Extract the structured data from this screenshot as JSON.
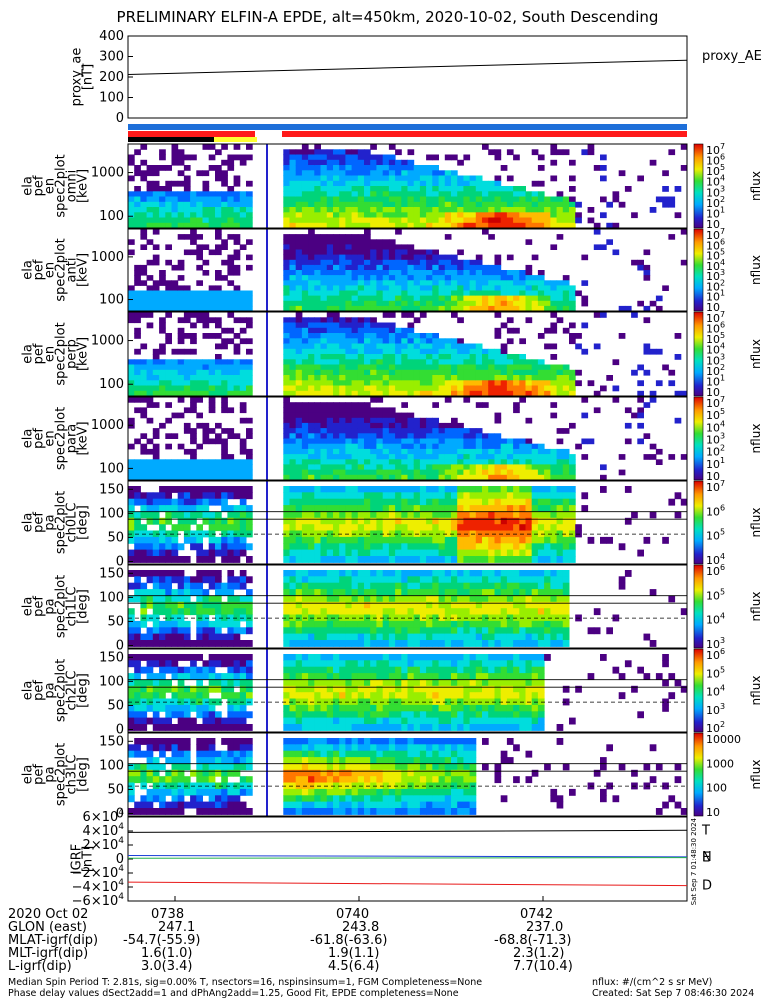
{
  "title": "PRELIMINARY ELFIN-A EPDE, alt=450km, 2020-10-02, South Descending",
  "chart_data": [
    {
      "type": "line",
      "name": "proxy_ae",
      "ylabel": [
        "proxy_ae",
        "[nT]"
      ],
      "legend": "proxy_AE",
      "yticks": [
        "400",
        "300",
        "200",
        "100",
        "0"
      ],
      "ylim": [
        0,
        400
      ],
      "series": [
        {
          "name": "proxy_AE",
          "color": "#000000",
          "y_start": 212,
          "y_end": 282
        }
      ]
    },
    {
      "type": "heatmap",
      "name": "ela_pef_en_spec2plot_omni",
      "ylabel": [
        "ela",
        "pef",
        "en",
        "spec2plot",
        "omni",
        "[keV]"
      ],
      "yticks": [
        "1000",
        "100"
      ],
      "cbar_unit": "nflux",
      "cbar_ticks": [
        "10",
        "10",
        "10",
        "10",
        "10",
        "10",
        "10",
        "10"
      ],
      "cbar_exps": [
        "7",
        "6",
        "5",
        "4",
        "3",
        "2",
        "1",
        ""
      ]
    },
    {
      "type": "heatmap",
      "name": "ela_pef_en_spec2plot_anti",
      "ylabel": [
        "ela",
        "pef",
        "en",
        "spec2plot",
        "anti",
        "[keV]"
      ],
      "yticks": [
        "1000",
        "100"
      ],
      "cbar_unit": "nflux",
      "cbar_ticks": [
        "10",
        "10",
        "10",
        "10",
        "10",
        "10",
        "10",
        "10"
      ],
      "cbar_exps": [
        "7",
        "6",
        "5",
        "4",
        "3",
        "2",
        "1",
        ""
      ]
    },
    {
      "type": "heatmap",
      "name": "ela_pef_en_spec2plot_perp",
      "ylabel": [
        "ela",
        "pef",
        "en",
        "spec2plot",
        "perp",
        "[keV]"
      ],
      "yticks": [
        "1000",
        "100"
      ],
      "cbar_unit": "nflux",
      "cbar_ticks": [
        "10",
        "10",
        "10",
        "10",
        "10",
        "10",
        "10",
        "10"
      ],
      "cbar_exps": [
        "7",
        "6",
        "5",
        "4",
        "3",
        "2",
        "1",
        ""
      ]
    },
    {
      "type": "heatmap",
      "name": "ela_pef_en_spec2plot_para",
      "ylabel": [
        "ela",
        "pef",
        "en",
        "spec2plot",
        "para",
        "[keV]"
      ],
      "yticks": [
        "1000",
        "100"
      ],
      "cbar_unit": "nflux",
      "cbar_ticks": [
        "10",
        "10",
        "10",
        "10",
        "10",
        "10",
        "10"
      ],
      "cbar_exps": [
        "7",
        "5",
        "4",
        "3",
        "2",
        "1",
        ""
      ]
    },
    {
      "type": "heatmap",
      "name": "ela_pef_pa_spec2plot_ch0LC",
      "ylabel": [
        "ela",
        "pef",
        "pa",
        "spec2plot",
        "ch0LC",
        "[deg]"
      ],
      "yticks": [
        "150",
        "100",
        "50",
        "0"
      ],
      "cbar_unit": "nflux",
      "cbar_ticks": [
        "10",
        "10",
        "10",
        "10"
      ],
      "cbar_exps": [
        "7",
        "6",
        "5",
        "4"
      ]
    },
    {
      "type": "heatmap",
      "name": "ela_pef_pa_spec2plot_ch1LC",
      "ylabel": [
        "ela",
        "pef",
        "pa",
        "spec2plot",
        "ch1LC",
        "[deg]"
      ],
      "yticks": [
        "150",
        "100",
        "50",
        "0"
      ],
      "cbar_unit": "nflux",
      "cbar_ticks": [
        "10",
        "10",
        "10",
        "10"
      ],
      "cbar_exps": [
        "6",
        "5",
        "4",
        "3"
      ]
    },
    {
      "type": "heatmap",
      "name": "ela_pef_pa_spec2plot_ch2LC",
      "ylabel": [
        "ela",
        "pef",
        "pa",
        "spec2plot",
        "ch2LC",
        "[deg]"
      ],
      "yticks": [
        "150",
        "100",
        "50",
        "0"
      ],
      "cbar_unit": "nflux",
      "cbar_ticks": [
        "10",
        "10",
        "10",
        "10",
        "10"
      ],
      "cbar_exps": [
        "6",
        "5",
        "4",
        "3",
        "2"
      ]
    },
    {
      "type": "heatmap",
      "name": "ela_pef_pa_spec2plot_ch3LC",
      "ylabel": [
        "ela",
        "pef",
        "pa",
        "spec2plot",
        "ch3LC",
        "[deg]"
      ],
      "yticks": [
        "150",
        "100",
        "50",
        "0"
      ],
      "cbar_unit": "nflux",
      "cbar_ticks": [
        "10000",
        "1000",
        "100",
        "10"
      ],
      "cbar_exps": [
        "",
        "",
        "",
        ""
      ]
    },
    {
      "type": "line",
      "name": "IGRF",
      "ylabel": [
        "IGRF",
        "[nT]"
      ],
      "yticks": [
        "6×10",
        "4×10",
        "2×10",
        "0",
        "−2×10",
        "−4×10",
        "−6×10"
      ],
      "ytick_exps": [
        "4",
        "4",
        "4",
        "",
        "4",
        "4",
        "4"
      ],
      "ylim": [
        -60000,
        60000
      ],
      "series": [
        {
          "name": "T",
          "color": "#000000",
          "y_start": 38000,
          "y_end": 41000
        },
        {
          "name": "N",
          "color": "#1a3fd6",
          "y_start": 5000,
          "y_end": 3000
        },
        {
          "name": "E",
          "color": "#22b14c",
          "y_start": 1000,
          "y_end": 2000
        },
        {
          "name": "D",
          "color": "#e81919",
          "y_start": -33000,
          "y_end": -38000
        }
      ],
      "legend_labels": [
        "T",
        "N",
        "E",
        "D"
      ]
    }
  ],
  "status_bar": {
    "colors": [
      "#ff1a1a",
      "#ffffff",
      "#ff1a1a"
    ],
    "blue": "#1e6fd9"
  },
  "ephemeris": {
    "date": "2020 Oct 02",
    "times": [
      "0738",
      "0740",
      "0742"
    ],
    "rows": [
      {
        "name": "GLON (east)",
        "values": [
          "247.1",
          "243.8",
          "237.0"
        ]
      },
      {
        "name": "MLAT-igrf(dip)",
        "values": [
          "-54.7(-55.9)",
          "-61.8(-63.6)",
          "-68.8(-71.3)"
        ]
      },
      {
        "name": "MLT-igrf(dip)",
        "values": [
          "1.6(1.0)",
          "1.9(1.1)",
          "2.3(1.2)"
        ]
      },
      {
        "name": "L-igrf(dip)",
        "values": [
          "3.0(3.4)",
          "4.5(6.4)",
          "7.7(10.4)"
        ]
      }
    ]
  },
  "footer": {
    "line1": "Median Spin Period T: 2.81s, sig=0.00% T, nsectors=16, nspinsinsum=1, FGM Completeness=None",
    "line2": "Phase delay values dSect2add=1 and dPhAng2add=1.25, Good Fit, EPDE completeness=None",
    "units": "nflux: #/(cm^2 s sr MeV)",
    "created": "Created: Sat Sep  7 08:46:30 2024",
    "stamp": "Sat Sep  7 01:48:30 2024"
  }
}
